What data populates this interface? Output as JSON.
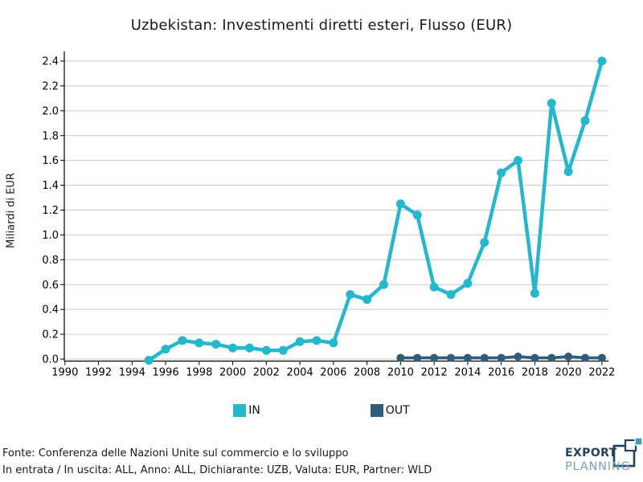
{
  "title": "Uzbekistan: Investimenti diretti esteri, Flusso (EUR)",
  "chart_data": {
    "type": "line",
    "title": "Uzbekistan: Investimenti diretti esteri, Flusso (EUR)",
    "xlabel": "",
    "ylabel": "Miliardi di EUR",
    "xlim": [
      1990,
      2022
    ],
    "ylim": [
      0.0,
      2.4
    ],
    "xtick_step": 2,
    "ytick_step": 0.2,
    "grid": "horizontal",
    "legend_position": "bottom",
    "grid_color": "#c9c9c9",
    "axis_color": "#000000",
    "series": [
      {
        "name": "IN",
        "color": "#25b7cd",
        "x": [
          1995,
          1996,
          1997,
          1998,
          1999,
          2000,
          2001,
          2002,
          2003,
          2004,
          2005,
          2006,
          2007,
          2008,
          2009,
          2010,
          2011,
          2012,
          2013,
          2014,
          2015,
          2016,
          2017,
          2018,
          2019,
          2020,
          2021,
          2022
        ],
        "values": [
          -0.01,
          0.08,
          0.15,
          0.13,
          0.12,
          0.09,
          0.09,
          0.07,
          0.07,
          0.14,
          0.15,
          0.13,
          0.52,
          0.48,
          0.6,
          1.25,
          1.16,
          0.58,
          0.52,
          0.61,
          0.94,
          1.5,
          1.6,
          0.53,
          2.06,
          1.51,
          1.92,
          2.4
        ]
      },
      {
        "name": "OUT",
        "color": "#2f5d79",
        "x": [
          2010,
          2011,
          2012,
          2013,
          2014,
          2015,
          2016,
          2017,
          2018,
          2019,
          2020,
          2021,
          2022
        ],
        "values": [
          0.01,
          0.01,
          0.01,
          0.01,
          0.01,
          0.01,
          0.01,
          0.02,
          0.01,
          0.01,
          0.02,
          0.01,
          0.01
        ]
      }
    ]
  },
  "legend": {
    "items": [
      {
        "label": "IN",
        "color": "#25b7cd"
      },
      {
        "label": "OUT",
        "color": "#2f5d79"
      }
    ]
  },
  "footer": {
    "source_line": "Fonte: Conferenza delle Nazioni Unite sul commercio e lo sviluppo",
    "filters_line": "In entrata / In uscita: ALL, Anno: ALL, Dichiarante: UZB, Valuta: EUR, Partner: WLD"
  },
  "branding": {
    "brand_top": "EXPORT",
    "brand_bottom": "PLANNING",
    "brand_top_color": "#24425e",
    "brand_bottom_color": "#7e9db4",
    "icon_teal": "#35a1bb",
    "icon_navy": "#24425e"
  }
}
